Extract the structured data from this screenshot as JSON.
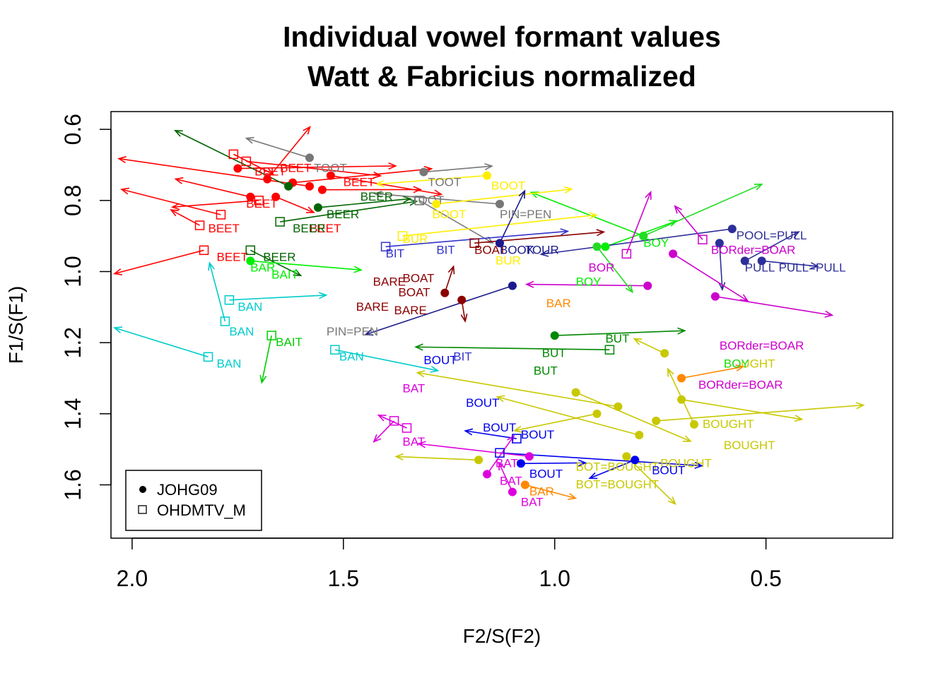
{
  "chart_data": {
    "type": "scatter",
    "title": "Individual vowel formant values",
    "subtitle": "Watt & Fabricius normalized",
    "xlabel": "F2/S(F2)",
    "ylabel": "F1/S(F1)",
    "xlim": [
      2.05,
      0.2
    ],
    "ylim": [
      1.75,
      0.55
    ],
    "x_reversed": true,
    "y_reversed": true,
    "x_ticks": [
      "2.0",
      "1.5",
      "1.0",
      "0.5"
    ],
    "x_tick_values": [
      2.0,
      1.5,
      1.0,
      0.5
    ],
    "y_ticks": [
      "0.6",
      "0.8",
      "1.0",
      "1.2",
      "1.4",
      "1.6"
    ],
    "y_tick_values": [
      0.6,
      0.8,
      1.0,
      1.2,
      1.4,
      1.6
    ],
    "grid": false,
    "legend": {
      "placement": "bottom-left",
      "entries": [
        {
          "name": "JOHG09",
          "marker": "filled-circle"
        },
        {
          "name": "OHDMTV_M",
          "marker": "open-square"
        }
      ]
    },
    "series": [
      {
        "name": "BEET",
        "color": "#ff0000",
        "points": [
          {
            "x": 1.75,
            "y": 0.71,
            "m": "c"
          },
          {
            "x": 1.72,
            "y": 0.79,
            "m": "c"
          },
          {
            "x": 1.62,
            "y": 0.75,
            "m": "c"
          },
          {
            "x": 1.58,
            "y": 0.76,
            "m": "c"
          },
          {
            "x": 1.53,
            "y": 0.73,
            "m": "c"
          },
          {
            "x": 1.68,
            "y": 0.74,
            "m": "c"
          },
          {
            "x": 1.66,
            "y": 0.79,
            "m": "c"
          },
          {
            "x": 1.55,
            "y": 0.77,
            "m": "c"
          },
          {
            "x": 1.76,
            "y": 0.67,
            "m": "s"
          },
          {
            "x": 1.73,
            "y": 0.69,
            "m": "s"
          },
          {
            "x": 1.84,
            "y": 0.87,
            "m": "s"
          },
          {
            "x": 1.83,
            "y": 0.94,
            "m": "s"
          },
          {
            "x": 1.79,
            "y": 0.84,
            "m": "s"
          },
          {
            "x": 1.7,
            "y": 0.8,
            "m": "s"
          }
        ],
        "labels": [
          {
            "x": 1.71,
            "y": 0.73,
            "text": "BEET"
          },
          {
            "x": 1.65,
            "y": 0.72,
            "text": "BEET"
          },
          {
            "x": 1.8,
            "y": 0.97,
            "text": "BEET"
          },
          {
            "x": 1.82,
            "y": 0.89,
            "text": "BEET"
          },
          {
            "x": 1.73,
            "y": 0.82,
            "text": "BEET"
          },
          {
            "x": 1.58,
            "y": 0.89,
            "text": "BEET"
          },
          {
            "x": 1.5,
            "y": 0.76,
            "text": "BEET"
          }
        ]
      },
      {
        "name": "BEER",
        "color": "#006400",
        "points": [
          {
            "x": 1.65,
            "y": 0.86,
            "m": "s"
          },
          {
            "x": 1.72,
            "y": 0.94,
            "m": "s"
          },
          {
            "x": 1.63,
            "y": 0.76,
            "m": "c"
          },
          {
            "x": 1.56,
            "y": 0.82,
            "m": "c"
          }
        ],
        "labels": [
          {
            "x": 1.69,
            "y": 0.97,
            "text": "BEER"
          },
          {
            "x": 1.62,
            "y": 0.89,
            "text": "BEER"
          },
          {
            "x": 1.54,
            "y": 0.85,
            "text": "BEER"
          },
          {
            "x": 1.46,
            "y": 0.8,
            "text": "BEER"
          }
        ]
      },
      {
        "name": "BAR",
        "color": "#00ee00",
        "points": [
          {
            "x": 1.72,
            "y": 0.97,
            "m": "c"
          },
          {
            "x": 0.79,
            "y": 0.9,
            "m": "c"
          },
          {
            "x": 0.88,
            "y": 0.93,
            "m": "c"
          }
        ],
        "labels": [
          {
            "x": 1.72,
            "y": 1.0,
            "text": "BAR"
          },
          {
            "x": 1.67,
            "y": 1.02,
            "text": "BAIT"
          },
          {
            "x": 0.79,
            "y": 0.93,
            "text": "BOY"
          },
          {
            "x": 0.95,
            "y": 1.04,
            "text": "BOY"
          }
        ]
      },
      {
        "name": "BAN",
        "color": "#00cccc",
        "points": [
          {
            "x": 1.82,
            "y": 1.24,
            "m": "s"
          },
          {
            "x": 1.78,
            "y": 1.14,
            "m": "s"
          },
          {
            "x": 1.77,
            "y": 1.08,
            "m": "s"
          },
          {
            "x": 1.52,
            "y": 1.22,
            "m": "s"
          }
        ],
        "labels": [
          {
            "x": 1.8,
            "y": 1.27,
            "text": "BAN"
          },
          {
            "x": 1.75,
            "y": 1.11,
            "text": "BAN"
          },
          {
            "x": 1.77,
            "y": 1.18,
            "text": "BAN"
          },
          {
            "x": 1.51,
            "y": 1.25,
            "text": "BAN"
          }
        ]
      },
      {
        "name": "BAIT",
        "color": "#00cc00",
        "points": [
          {
            "x": 1.67,
            "y": 1.18,
            "m": "s"
          }
        ],
        "labels": [
          {
            "x": 1.66,
            "y": 1.21,
            "text": "BAIT"
          }
        ]
      },
      {
        "name": "TOOT",
        "color": "#777777",
        "points": [
          {
            "x": 1.58,
            "y": 0.68,
            "m": "c"
          },
          {
            "x": 1.31,
            "y": 0.72,
            "m": "c"
          },
          {
            "x": 1.13,
            "y": 0.81,
            "m": "c"
          },
          {
            "x": 1.32,
            "y": 0.8,
            "m": "s"
          }
        ],
        "labels": [
          {
            "x": 1.57,
            "y": 0.72,
            "text": "TOOT"
          },
          {
            "x": 1.3,
            "y": 0.76,
            "text": "TOOT"
          },
          {
            "x": 1.34,
            "y": 0.81,
            "text": "TOOT"
          },
          {
            "x": 1.13,
            "y": 0.85,
            "text": "PIN=PEN"
          },
          {
            "x": 1.54,
            "y": 1.18,
            "text": "PIN=PEN"
          }
        ]
      },
      {
        "name": "BOOT",
        "color": "#ffee00",
        "points": [
          {
            "x": 1.16,
            "y": 0.73,
            "m": "c"
          },
          {
            "x": 1.28,
            "y": 0.81,
            "m": "c"
          },
          {
            "x": 1.36,
            "y": 0.9,
            "m": "s"
          }
        ],
        "labels": [
          {
            "x": 1.15,
            "y": 0.77,
            "text": "BOOT"
          },
          {
            "x": 1.29,
            "y": 0.85,
            "text": "BOOT"
          },
          {
            "x": 1.36,
            "y": 0.92,
            "text": "BUR"
          },
          {
            "x": 1.14,
            "y": 0.98,
            "text": "BUR"
          }
        ]
      },
      {
        "name": "BOAT",
        "color": "#8b0000",
        "points": [
          {
            "x": 1.19,
            "y": 0.92,
            "m": "s"
          },
          {
            "x": 1.26,
            "y": 1.06,
            "m": "c"
          },
          {
            "x": 1.22,
            "y": 1.08,
            "m": "c"
          }
        ],
        "labels": [
          {
            "x": 1.19,
            "y": 0.95,
            "text": "BOAT"
          },
          {
            "x": 1.43,
            "y": 1.04,
            "text": "BARE"
          },
          {
            "x": 1.47,
            "y": 1.11,
            "text": "BARE"
          },
          {
            "x": 1.38,
            "y": 1.12,
            "text": "BARE"
          },
          {
            "x": 1.37,
            "y": 1.07,
            "text": "BOAT"
          },
          {
            "x": 1.36,
            "y": 1.03,
            "text": "BOAT"
          }
        ]
      },
      {
        "name": "BOOK",
        "color": "#1a1a8c",
        "points": [
          {
            "x": 1.13,
            "y": 0.92,
            "m": "c"
          },
          {
            "x": 1.1,
            "y": 1.04,
            "m": "c"
          }
        ],
        "labels": [
          {
            "x": 1.13,
            "y": 0.95,
            "text": "BOOK"
          },
          {
            "x": 1.07,
            "y": 0.95,
            "text": "TOUR"
          }
        ]
      },
      {
        "name": "POOL=PULL",
        "color": "#2e2e9a",
        "points": [
          {
            "x": 0.58,
            "y": 0.88,
            "m": "c"
          },
          {
            "x": 0.61,
            "y": 0.92,
            "m": "c"
          },
          {
            "x": 0.51,
            "y": 0.97,
            "m": "c"
          },
          {
            "x": 0.55,
            "y": 0.97,
            "m": "c"
          }
        ],
        "labels": [
          {
            "x": 0.57,
            "y": 0.91,
            "text": "POOL=PULL"
          },
          {
            "x": 0.55,
            "y": 1.0,
            "text": "PULL"
          },
          {
            "x": 0.47,
            "y": 1.0,
            "text": "PULL=PULL"
          }
        ]
      },
      {
        "name": "BORder=BOAR",
        "color": "#cc00cc",
        "points": [
          {
            "x": 0.65,
            "y": 0.91,
            "m": "s"
          },
          {
            "x": 0.72,
            "y": 0.95,
            "m": "c"
          },
          {
            "x": 0.83,
            "y": 0.95,
            "m": "s"
          },
          {
            "x": 0.78,
            "y": 1.04,
            "m": "c"
          },
          {
            "x": 0.62,
            "y": 1.07,
            "m": "c"
          }
        ],
        "labels": [
          {
            "x": 0.63,
            "y": 0.95,
            "text": "BORder=BOAR"
          },
          {
            "x": 0.61,
            "y": 1.22,
            "text": "BORder=BOAR"
          },
          {
            "x": 0.66,
            "y": 1.33,
            "text": "BORder=BOAR"
          },
          {
            "x": 0.92,
            "y": 1.0,
            "text": "BOR"
          }
        ]
      },
      {
        "name": "BOUGHT",
        "color": "#c8c800",
        "points": [
          {
            "x": 0.85,
            "y": 1.38,
            "m": "c"
          },
          {
            "x": 0.76,
            "y": 1.42,
            "m": "c"
          },
          {
            "x": 0.7,
            "y": 1.36,
            "m": "c"
          },
          {
            "x": 0.8,
            "y": 1.46,
            "m": "c"
          },
          {
            "x": 0.9,
            "y": 1.4,
            "m": "c"
          },
          {
            "x": 1.18,
            "y": 1.53,
            "m": "c"
          },
          {
            "x": 0.83,
            "y": 1.52,
            "m": "c"
          },
          {
            "x": 0.95,
            "y": 1.34,
            "m": "c"
          },
          {
            "x": 0.67,
            "y": 1.43,
            "m": "c"
          },
          {
            "x": 0.74,
            "y": 1.23,
            "m": "c"
          }
        ],
        "labels": [
          {
            "x": 0.65,
            "y": 1.44,
            "text": "BOUGHT"
          },
          {
            "x": 0.6,
            "y": 1.5,
            "text": "BOUGHT"
          },
          {
            "x": 0.75,
            "y": 1.55,
            "text": "BOUGHT"
          },
          {
            "x": 0.6,
            "y": 1.27,
            "text": "BOUGHT"
          },
          {
            "x": 0.95,
            "y": 1.61,
            "text": "BOT=BOUGHT"
          },
          {
            "x": 0.95,
            "y": 1.56,
            "text": "BOT=BOUGHT"
          }
        ]
      },
      {
        "name": "BOUT",
        "color": "#0000ee",
        "points": [
          {
            "x": 1.09,
            "y": 1.47,
            "m": "s"
          },
          {
            "x": 1.13,
            "y": 1.51,
            "m": "s"
          },
          {
            "x": 0.81,
            "y": 1.53,
            "m": "c"
          },
          {
            "x": 1.08,
            "y": 1.54,
            "m": "c"
          }
        ],
        "labels": [
          {
            "x": 1.31,
            "y": 1.26,
            "text": "BOUT"
          },
          {
            "x": 1.21,
            "y": 1.38,
            "text": "BOUT"
          },
          {
            "x": 1.17,
            "y": 1.45,
            "text": "BOUT"
          },
          {
            "x": 1.08,
            "y": 1.47,
            "text": "BOUT"
          },
          {
            "x": 0.77,
            "y": 1.57,
            "text": "BOUT"
          },
          {
            "x": 1.06,
            "y": 1.58,
            "text": "BOUT"
          }
        ]
      },
      {
        "name": "BAT",
        "color": "#dd00dd",
        "points": [
          {
            "x": 1.16,
            "y": 1.57,
            "m": "c"
          },
          {
            "x": 1.06,
            "y": 1.52,
            "m": "c"
          },
          {
            "x": 1.1,
            "y": 1.62,
            "m": "c"
          },
          {
            "x": 1.38,
            "y": 1.42,
            "m": "s"
          },
          {
            "x": 1.35,
            "y": 1.44,
            "m": "s"
          }
        ],
        "labels": [
          {
            "x": 1.14,
            "y": 1.55,
            "text": "BAT"
          },
          {
            "x": 1.13,
            "y": 1.6,
            "text": "BAT"
          },
          {
            "x": 1.08,
            "y": 1.66,
            "text": "BAT"
          },
          {
            "x": 1.36,
            "y": 1.49,
            "text": "BAT"
          },
          {
            "x": 1.36,
            "y": 1.34,
            "text": "BAT"
          }
        ]
      },
      {
        "name": "BAR",
        "color": "#ff8800",
        "points": [
          {
            "x": 1.07,
            "y": 1.6,
            "m": "c"
          },
          {
            "x": 0.7,
            "y": 1.3,
            "m": "c"
          }
        ],
        "labels": [
          {
            "x": 1.06,
            "y": 1.63,
            "text": "BAR"
          },
          {
            "x": 1.02,
            "y": 1.1,
            "text": "BAR"
          }
        ]
      },
      {
        "name": "BUT",
        "color": "#008800",
        "points": [
          {
            "x": 1.0,
            "y": 1.18,
            "m": "c"
          },
          {
            "x": 0.87,
            "y": 1.22,
            "m": "s"
          }
        ],
        "labels": [
          {
            "x": 1.03,
            "y": 1.24,
            "text": "BUT"
          },
          {
            "x": 1.05,
            "y": 1.29,
            "text": "BUT"
          },
          {
            "x": 0.88,
            "y": 1.2,
            "text": "BUT"
          }
        ]
      },
      {
        "name": "BIT",
        "color": "#3333cc",
        "points": [
          {
            "x": 1.4,
            "y": 0.93,
            "m": "s"
          }
        ],
        "labels": [
          {
            "x": 1.4,
            "y": 0.96,
            "text": "BIT"
          },
          {
            "x": 1.28,
            "y": 0.95,
            "text": "BIT"
          },
          {
            "x": 1.24,
            "y": 1.25,
            "text": "BIT"
          }
        ]
      },
      {
        "name": "BOY",
        "color": "#22dd22",
        "points": [
          {
            "x": 0.79,
            "y": 0.9,
            "m": "c"
          },
          {
            "x": 0.9,
            "y": 0.93,
            "m": "c"
          }
        ],
        "labels": [
          {
            "x": 0.6,
            "y": 1.27,
            "text": "BOY"
          }
        ]
      }
    ],
    "arrows_present": true
  }
}
